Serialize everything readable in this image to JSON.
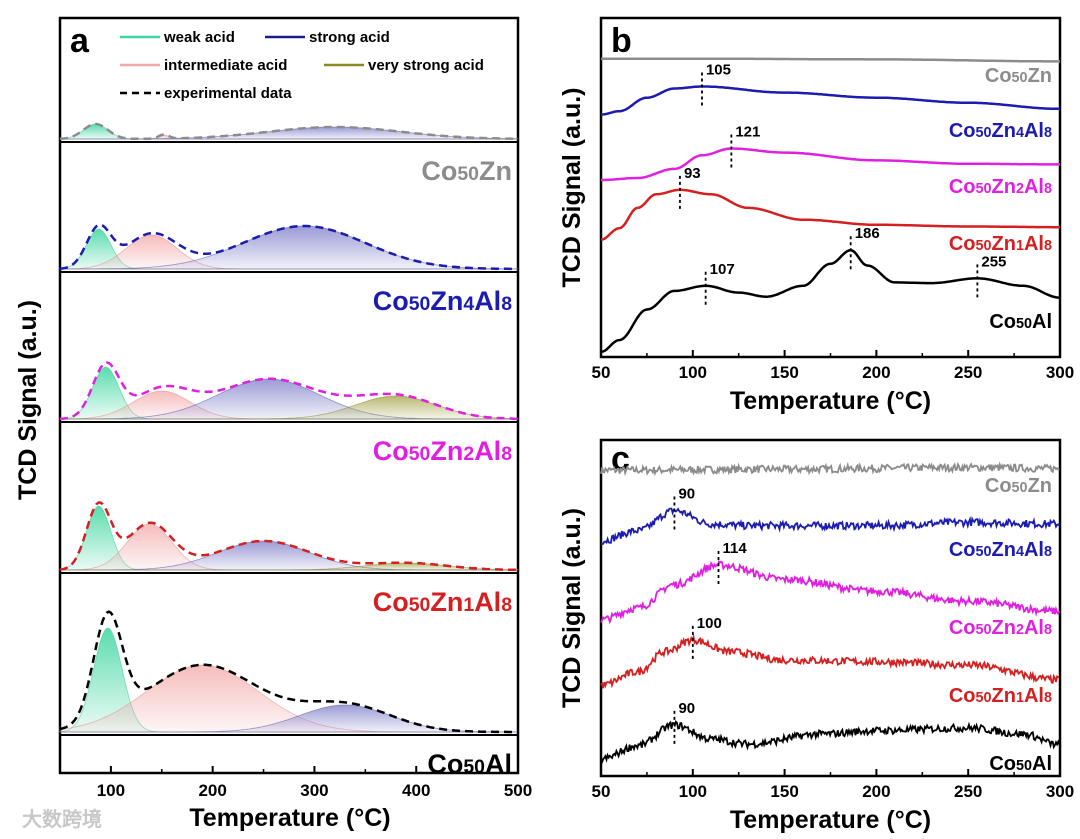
{
  "watermark": "大数跨境",
  "colors": {
    "Co50Zn": "#8c8c8c",
    "Co50Zn4Al8": "#1c1cb0",
    "Co50Zn2Al8": "#e020e0",
    "Co50Zn1Al8": "#d42020",
    "Co50Al": "#000000"
  },
  "chart_data": [
    {
      "panel": "a",
      "type": "area",
      "xlabel": "Temperature (°C)",
      "ylabel": "TCD Signal (a.u.)",
      "xlim": [
        50,
        500
      ],
      "xticks": [
        100,
        200,
        300,
        400,
        500
      ],
      "legend": [
        {
          "label": "weak acid",
          "color": "#3dd6a0",
          "style": "solid"
        },
        {
          "label": "strong acid",
          "color": "#1a1a8a",
          "style": "solid"
        },
        {
          "label": "intermediate acid",
          "color": "#f0a8a8",
          "style": "solid"
        },
        {
          "label": "very strong acid",
          "color": "#8a8a20",
          "style": "solid"
        },
        {
          "label": "experimental data",
          "color": "#000000",
          "style": "dashed"
        }
      ],
      "component_colors": {
        "weak": "#3dd6a0",
        "intermediate": "#f2a0a0",
        "strong": "#7a7ac8",
        "very_strong": "#a0a040"
      },
      "series": [
        {
          "label": "Co50Zn",
          "components": [
            {
              "type": "weak",
              "center": 85,
              "amp": 15,
              "sigma": 12
            },
            {
              "type": "intermediate",
              "center": 152,
              "amp": 4,
              "sigma": 5
            },
            {
              "type": "strong",
              "center": 320,
              "amp": 12,
              "sigma": 65
            }
          ]
        },
        {
          "label": "Co50Zn4Al8",
          "components": [
            {
              "type": "weak",
              "center": 88,
              "amp": 40,
              "sigma": 12
            },
            {
              "type": "intermediate",
              "center": 140,
              "amp": 34,
              "sigma": 25
            },
            {
              "type": "strong",
              "center": 290,
              "amp": 43,
              "sigma": 60
            }
          ]
        },
        {
          "label": "Co50Zn2Al8",
          "components": [
            {
              "type": "weak",
              "center": 95,
              "amp": 52,
              "sigma": 13
            },
            {
              "type": "intermediate",
              "center": 150,
              "amp": 28,
              "sigma": 28
            },
            {
              "type": "strong",
              "center": 255,
              "amp": 40,
              "sigma": 50
            },
            {
              "type": "very_strong",
              "center": 380,
              "amp": 23,
              "sigma": 40
            }
          ]
        },
        {
          "label": "Co50Zn1Al8",
          "components": [
            {
              "type": "weak",
              "center": 88,
              "amp": 64,
              "sigma": 12
            },
            {
              "type": "intermediate",
              "center": 138,
              "amp": 46,
              "sigma": 22
            },
            {
              "type": "strong",
              "center": 250,
              "amp": 29,
              "sigma": 45
            },
            {
              "type": "very_strong",
              "center": 390,
              "amp": 7,
              "sigma": 40
            }
          ]
        },
        {
          "label": "Co50Al",
          "components": [
            {
              "type": "weak",
              "center": 97,
              "amp": 104,
              "sigma": 14
            },
            {
              "type": "intermediate",
              "center": 190,
              "amp": 67,
              "sigma": 55
            },
            {
              "type": "strong",
              "center": 330,
              "amp": 27,
              "sigma": 45
            }
          ]
        }
      ]
    },
    {
      "panel": "b",
      "type": "line",
      "xlabel": "Temperature (°C)",
      "ylabel": "TCD Signal (a.u.)",
      "xlim": [
        50,
        300
      ],
      "ylim": [
        0,
        100
      ],
      "xticks": [
        50,
        100,
        150,
        200,
        250,
        300
      ],
      "series": [
        {
          "label": "Co50Zn",
          "points": [
            [
              50,
              88
            ],
            [
              100,
              88
            ],
            [
              200,
              87.8
            ],
            [
              300,
              87.2
            ]
          ],
          "peaks": []
        },
        {
          "label": "Co50Zn4Al8",
          "points": [
            [
              50,
              71.5
            ],
            [
              60,
              72.5
            ],
            [
              75,
              76.5
            ],
            [
              90,
              79.2
            ],
            [
              105,
              79.8
            ],
            [
              150,
              78
            ],
            [
              200,
              76.5
            ],
            [
              250,
              75
            ],
            [
              300,
              73.2
            ]
          ],
          "peaks": [
            {
              "x": 105,
              "label": "105"
            }
          ]
        },
        {
          "label": "Co50Zn2Al8",
          "points": [
            [
              50,
              52.2
            ],
            [
              70,
              52.8
            ],
            [
              90,
              55.5
            ],
            [
              105,
              59.5
            ],
            [
              121,
              61.5
            ],
            [
              150,
              60.3
            ],
            [
              200,
              58
            ],
            [
              250,
              57
            ],
            [
              300,
              56.8
            ]
          ],
          "peaks": [
            {
              "x": 121,
              "label": "121"
            }
          ]
        },
        {
          "label": "Co50Zn1Al8",
          "points": [
            [
              50,
              34.6
            ],
            [
              60,
              38
            ],
            [
              70,
              44
            ],
            [
              80,
              48
            ],
            [
              93,
              49.3
            ],
            [
              110,
              48
            ],
            [
              130,
              44
            ],
            [
              160,
              40.5
            ],
            [
              200,
              39
            ],
            [
              250,
              38.5
            ],
            [
              300,
              38.3
            ]
          ],
          "peaks": [
            {
              "x": 93,
              "label": "93"
            }
          ]
        },
        {
          "label": "Co50Al",
          "points": [
            [
              50,
              1.5
            ],
            [
              60,
              5
            ],
            [
              75,
              14
            ],
            [
              90,
              19.5
            ],
            [
              107,
              21
            ],
            [
              125,
              19
            ],
            [
              140,
              17.8
            ],
            [
              160,
              21
            ],
            [
              175,
              27.5
            ],
            [
              186,
              31.5
            ],
            [
              195,
              27
            ],
            [
              210,
              22
            ],
            [
              230,
              21.8
            ],
            [
              255,
              23.2
            ],
            [
              280,
              21
            ],
            [
              300,
              17.5
            ]
          ],
          "peaks": [
            {
              "x": 107,
              "label": "107"
            },
            {
              "x": 186,
              "label": "186"
            },
            {
              "x": 255,
              "label": "255"
            }
          ]
        }
      ]
    },
    {
      "panel": "c",
      "type": "line",
      "xlabel": "Temperature (°C)",
      "ylabel": "TCD Signal (a.u.)",
      "xlim": [
        50,
        300
      ],
      "ylim": [
        0,
        100
      ],
      "xticks": [
        50,
        100,
        150,
        200,
        250,
        300
      ],
      "series": [
        {
          "label": "Co50Zn",
          "points": [
            [
              50,
              91
            ],
            [
              150,
              91.3
            ],
            [
              250,
              91.8
            ],
            [
              300,
              91.5
            ]
          ],
          "peaks": []
        },
        {
          "label": "Co50Zn4Al8",
          "points": [
            [
              50,
              70
            ],
            [
              70,
              73
            ],
            [
              90,
              79
            ],
            [
              110,
              75
            ],
            [
              130,
              74.5
            ],
            [
              200,
              74.5
            ],
            [
              250,
              75.5
            ],
            [
              300,
              75
            ]
          ],
          "peaks": [
            {
              "x": 90,
              "label": "90"
            }
          ]
        },
        {
          "label": "Co50Zn2Al8",
          "points": [
            [
              50,
              46.5
            ],
            [
              70,
              50
            ],
            [
              90,
              57
            ],
            [
              114,
              62.8
            ],
            [
              150,
              58.5
            ],
            [
              200,
              55
            ],
            [
              250,
              52
            ],
            [
              300,
              49
            ]
          ],
          "peaks": [
            {
              "x": 114,
              "label": "114"
            }
          ]
        },
        {
          "label": "Co50Zn1Al8",
          "points": [
            [
              50,
              27
            ],
            [
              70,
              31
            ],
            [
              85,
              37
            ],
            [
              100,
              40.5
            ],
            [
              120,
              37
            ],
            [
              150,
              34.5
            ],
            [
              200,
              34
            ],
            [
              250,
              33
            ],
            [
              300,
              28.6
            ]
          ],
          "peaks": [
            {
              "x": 100,
              "label": "100"
            }
          ]
        },
        {
          "label": "Co50Al",
          "points": [
            [
              50,
              5
            ],
            [
              70,
              9
            ],
            [
              90,
              15.2
            ],
            [
              110,
              11
            ],
            [
              130,
              9.5
            ],
            [
              170,
              12.5
            ],
            [
              200,
              13.5
            ],
            [
              250,
              14.3
            ],
            [
              280,
              12.5
            ],
            [
              300,
              9.2
            ]
          ],
          "peaks": [
            {
              "x": 90,
              "label": "90"
            }
          ]
        }
      ]
    }
  ]
}
